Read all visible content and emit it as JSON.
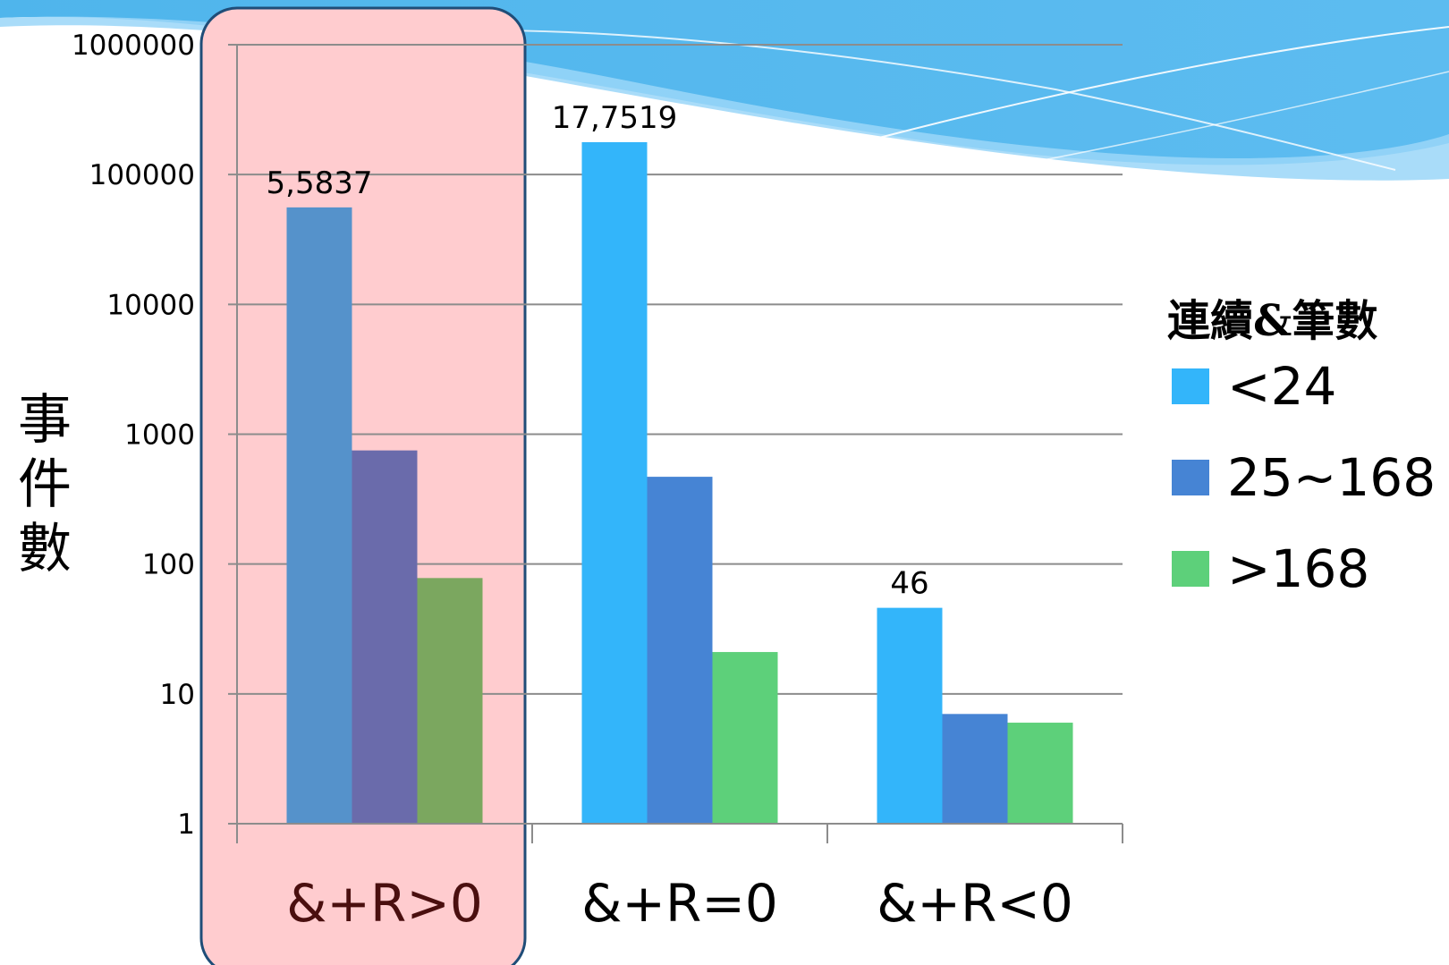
{
  "chart_data": {
    "type": "bar",
    "log_scale": true,
    "ylim": [
      1,
      1000000
    ],
    "y_ticks": [
      "1",
      "10",
      "100",
      "1000",
      "10000",
      "100000",
      "1000000"
    ],
    "ylabel": "事件數",
    "categories": [
      "&+R>0",
      "&+R=0",
      "&+R<0"
    ],
    "legend_title": "連續&筆數",
    "legend_position": "right",
    "grid": true,
    "series": [
      {
        "name": "<24",
        "values": [
          55837,
          177519,
          46
        ]
      },
      {
        "name": "25~168",
        "values": [
          750,
          470,
          7
        ]
      },
      {
        "name": ">168",
        "values": [
          78,
          21,
          6
        ]
      }
    ],
    "data_labels": [
      "5,5837",
      "17,7519",
      "46"
    ],
    "highlighted_category": "&+R>0",
    "colors": {
      "series": [
        "#33b5fa",
        "#4684d4",
        "#5dd07a"
      ],
      "highlight_series": [
        "#5592cb",
        "#6a6bab",
        "#7ba75f"
      ],
      "highlight_fill": "#ffcccf",
      "highlight_border": "#1f4d78",
      "gridline": "#8c8c8c",
      "highlight_text": "#4a0f0f"
    }
  }
}
